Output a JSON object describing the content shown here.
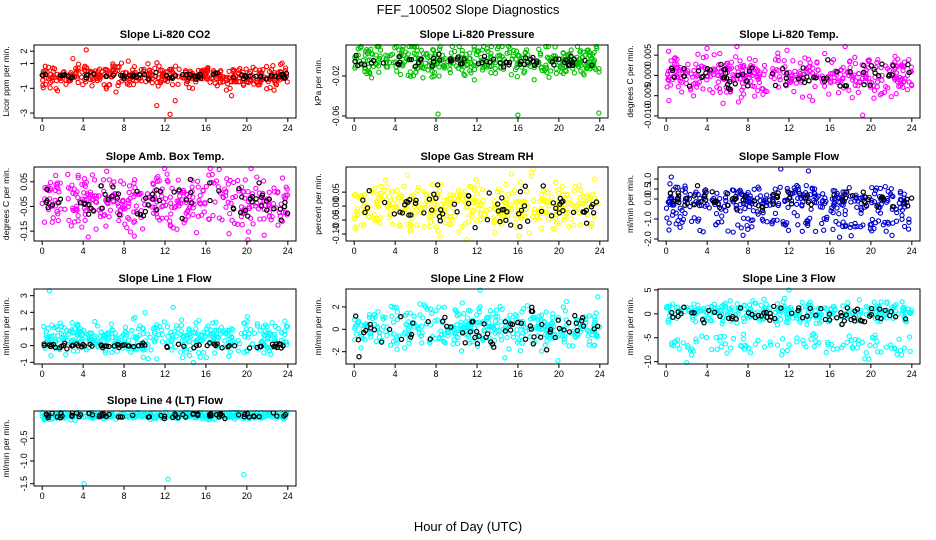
{
  "figure": {
    "title": "FEF_100502  Slope Diagnostics",
    "xlabel": "Hour of Day (UTC)"
  },
  "chart_data": [
    {
      "type": "scatter",
      "title": "Slope Li-820 CO2",
      "ylabel": "Licor ppm per min.",
      "color": "#ff0000",
      "xlim": [
        0,
        24
      ],
      "xticks": [
        0,
        4,
        8,
        12,
        16,
        20,
        24
      ],
      "ylim": [
        -3.4,
        2.5
      ],
      "yticks": [
        -3,
        -1,
        1,
        2
      ],
      "ytick_labels": [
        "-3",
        "-1",
        "1",
        "2"
      ],
      "baseline": 0.0,
      "spread": 0.45,
      "outliers": [
        [
          4.3,
          2.1
        ],
        [
          11.2,
          -2.4
        ],
        [
          13.0,
          -2.0
        ],
        [
          12.5,
          -3.1
        ],
        [
          3.0,
          1.4
        ],
        [
          18.5,
          -1.6
        ],
        [
          1.5,
          -1.2
        ],
        [
          7.2,
          -1.3
        ]
      ],
      "black_y": 0.0,
      "black_spread": 0.12
    },
    {
      "type": "scatter",
      "title": "Slope Li-820 Pressure",
      "ylabel": "kPa per min.",
      "color": "#00c000",
      "xlim": [
        0,
        24
      ],
      "xticks": [
        0,
        4,
        8,
        12,
        16,
        20,
        24
      ],
      "ylim": [
        -0.062,
        0.011
      ],
      "yticks": [
        -0.06,
        -0.02
      ],
      "ytick_labels": [
        "-0.06",
        "-0.02"
      ],
      "baseline": -0.005,
      "spread": 0.008,
      "outliers": [
        [
          8.2,
          -0.058
        ],
        [
          16.0,
          -0.059
        ],
        [
          23.9,
          -0.057
        ],
        [
          0.6,
          0.008
        ],
        [
          21.2,
          0.006
        ]
      ],
      "black_y": -0.005,
      "black_spread": 0.003
    },
    {
      "type": "scatter",
      "title": "Slope Li-820 Temp.",
      "ylabel": "degrees C per min.",
      "color": "#ff00ff",
      "xlim": [
        0,
        24
      ],
      "xticks": [
        0,
        4,
        8,
        12,
        16,
        20,
        24
      ],
      "ylim": [
        -0.0105,
        0.0075
      ],
      "yticks": [
        -0.01,
        -0.005,
        0.0,
        0.005
      ],
      "ytick_labels": [
        "-0.010",
        "-0.005",
        "0.000",
        "0.005"
      ],
      "baseline": 0.0,
      "spread": 0.0026,
      "outliers": [
        [
          19.2,
          -0.0098
        ],
        [
          11.8,
          0.0062
        ],
        [
          14.3,
          -0.0062
        ],
        [
          3.1,
          0.0052
        ]
      ],
      "black_y": 0.0002,
      "black_spread": 0.0015
    },
    {
      "type": "scatter",
      "title": "Slope Amb. Box Temp.",
      "ylabel": "degrees C per min.",
      "color": "#ff00ff",
      "xlim": [
        0,
        24
      ],
      "xticks": [
        0,
        4,
        8,
        12,
        16,
        20,
        24
      ],
      "ylim": [
        -0.19,
        0.11
      ],
      "yticks": [
        -0.15,
        -0.05,
        0.05
      ],
      "ytick_labels": [
        "-0.15",
        "-0.05",
        "0.05"
      ],
      "baseline": -0.03,
      "spread": 0.055,
      "outliers": [
        [
          20.1,
          -0.185
        ],
        [
          17.3,
          0.1
        ],
        [
          2.5,
          0.08
        ],
        [
          9.0,
          -0.17
        ]
      ],
      "black_y": -0.03,
      "black_spread": 0.045
    },
    {
      "type": "scatter",
      "title": "Slope Gas Stream RH",
      "ylabel": "percent per min.",
      "color": "#ffff00",
      "xlim": [
        0,
        24
      ],
      "xticks": [
        0,
        4,
        8,
        12,
        16,
        20,
        24
      ],
      "ylim": [
        -0.125,
        0.14
      ],
      "yticks": [
        -0.1,
        -0.05,
        0.0,
        0.05
      ],
      "ytick_labels": [
        "-0.10",
        "-0.05",
        "0.00",
        "0.05"
      ],
      "baseline": 0.0,
      "spread": 0.042,
      "outliers": [
        [
          17.5,
          0.132
        ],
        [
          11.0,
          -0.12
        ],
        [
          5.2,
          0.11
        ]
      ],
      "black_y": 0.0,
      "black_spread": 0.035
    },
    {
      "type": "scatter",
      "title": "Slope Sample Flow",
      "ylabel": "ml/min per min.",
      "color": "#0000cc",
      "xlim": [
        0,
        24
      ],
      "xticks": [
        0,
        4,
        8,
        12,
        16,
        20,
        24
      ],
      "ylim": [
        -2.1,
        1.6
      ],
      "yticks": [
        -2,
        -1,
        0,
        0.5,
        1.0
      ],
      "ytick_labels": [
        "-2.0",
        "-1.0",
        "0.0",
        "0.5",
        "1.0"
      ],
      "baseline": 0.0,
      "spread": 0.3,
      "second_band": -1.2,
      "outliers": [
        [
          11.2,
          1.5
        ],
        [
          13.9,
          1.4
        ],
        [
          0.5,
          1.1
        ]
      ],
      "black_y": 0.0,
      "black_spread": 0.25
    },
    {
      "type": "scatter",
      "title": "Slope Line 1 Flow",
      "ylabel": "ml/min per min.",
      "color": "#00ffff",
      "xlim": [
        0,
        24
      ],
      "xticks": [
        0,
        4,
        8,
        12,
        16,
        20,
        24
      ],
      "ylim": [
        -1.1,
        3.4
      ],
      "yticks": [
        -1,
        0,
        1,
        2,
        3
      ],
      "ytick_labels": [
        "-1",
        "0",
        "1",
        "2",
        "3"
      ],
      "baseline": 0.5,
      "spread": 0.55,
      "outliers": [
        [
          0.7,
          3.3
        ],
        [
          12.8,
          2.3
        ],
        [
          11.2,
          -0.8
        ]
      ],
      "black_y": 0.0,
      "black_spread": 0.08
    },
    {
      "type": "scatter",
      "title": "Slope Line 2 Flow",
      "ylabel": "ml/min per min.",
      "color": "#00ffff",
      "xlim": [
        0,
        24
      ],
      "xticks": [
        0,
        4,
        8,
        12,
        16,
        20,
        24
      ],
      "ylim": [
        -3.1,
        3.6
      ],
      "yticks": [
        -2,
        0,
        2
      ],
      "ytick_labels": [
        "-2",
        "0",
        "2"
      ],
      "baseline": 0.2,
      "spread": 0.9,
      "outliers": [
        [
          12.3,
          3.5
        ],
        [
          23.8,
          2.9
        ],
        [
          19.9,
          -2.8
        ]
      ],
      "black_y": 0.0,
      "black_spread": 0.9
    },
    {
      "type": "scatter",
      "title": "Slope Line 3 Flow",
      "ylabel": "ml/min per min.",
      "color": "#00ffff",
      "xlim": [
        0,
        24
      ],
      "xticks": [
        0,
        4,
        8,
        12,
        16,
        20,
        24
      ],
      "ylim": [
        -10.5,
        5.2
      ],
      "yticks": [
        -10,
        -5,
        0,
        5
      ],
      "ytick_labels": [
        "-10",
        "-5",
        "0",
        "5"
      ],
      "baseline": 0.5,
      "spread": 1.2,
      "second_band": -6.5,
      "outliers": [
        [
          12.0,
          5.0
        ],
        [
          2.0,
          -10.2
        ],
        [
          19.8,
          -9.5
        ]
      ],
      "black_y": 0.0,
      "black_spread": 0.9
    },
    {
      "type": "scatter",
      "title": "Slope Line 4 (LT) Flow",
      "ylabel": "ml/min per min.",
      "color": "#00ffff",
      "xlim": [
        0,
        24
      ],
      "xticks": [
        0,
        4,
        8,
        12,
        16,
        20,
        24
      ],
      "ylim": [
        -1.55,
        0.1
      ],
      "yticks": [
        -1.5,
        -1.0,
        -0.5
      ],
      "ytick_labels": [
        "-1.5",
        "-1.0",
        "-0.5"
      ],
      "baseline": 0.0,
      "spread": 0.04,
      "outliers": [
        [
          4.1,
          -1.5
        ],
        [
          12.3,
          -1.4
        ],
        [
          19.7,
          -1.3
        ]
      ],
      "black_y": 0.0,
      "black_spread": 0.03
    }
  ]
}
